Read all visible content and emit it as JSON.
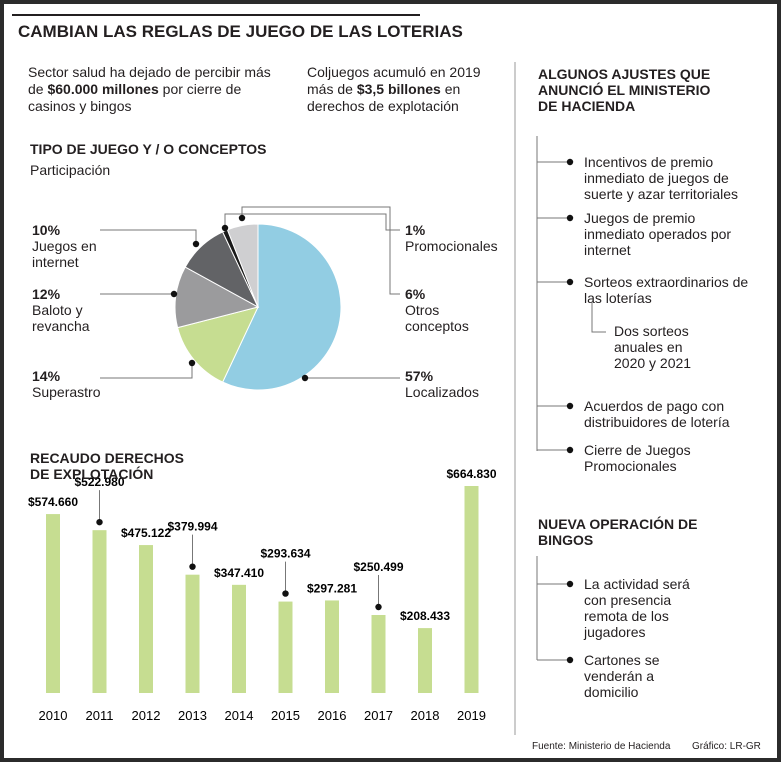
{
  "title": "CAMBIAN LAS REGLAS DE JUEGO DE LAS LOTERIAS",
  "intro": [
    {
      "before": "Sector salud ha dejado de percibir más de ",
      "bold": "$60.000 millones",
      "after": " por cierre de casinos y bingos"
    },
    {
      "before": "Coljuegos acumuló en 2019 más de ",
      "bold": "$3,5 billones",
      "after": " en derechos de explotación"
    }
  ],
  "chart_data": [
    {
      "type": "pie",
      "title": "TIPO DE JUEGO Y / O CONCEPTOS",
      "subtitle": "Participación",
      "categories": [
        "Localizados",
        "Superastro",
        "Baloto y revancha",
        "Juegos en internet",
        "Promocionales",
        "Otros conceptos"
      ],
      "values": [
        57,
        14,
        12,
        10,
        1,
        6
      ],
      "value_labels": [
        "57%",
        "14%",
        "12%",
        "10%",
        "1%",
        "6%"
      ],
      "colors": [
        "#92cde3",
        "#c6dd91",
        "#9b9b9d",
        "#626366",
        "#1a1a1a",
        "#cfcfd1"
      ]
    },
    {
      "type": "bar",
      "title": "RECAUDO DERECHOS DE EXPLOTACIÓN",
      "categories": [
        "2010",
        "2011",
        "2012",
        "2013",
        "2014",
        "2015",
        "2016",
        "2017",
        "2018",
        "2019"
      ],
      "values": [
        574660,
        522980,
        475122,
        379994,
        347410,
        293634,
        297281,
        250499,
        208433,
        664830
      ],
      "value_labels": [
        "$574.660",
        "$522.980",
        "$475.122",
        "$379.994",
        "$347.410",
        "$293.634",
        "$297.281",
        "$250.499",
        "$208.433",
        "$664.830"
      ],
      "color": "#c6dd91"
    }
  ],
  "sidebar": [
    {
      "heading": "ALGUNOS AJUSTES QUE ANUNCIÓ EL MINISTERIO DE HACIENDA",
      "items": [
        "Incentivos de premio inmediato de juegos de suerte y azar territoriales",
        "Juegos de premio inmediato operados por internet",
        "Sorteos extraordinarios de las loterías",
        "Acuerdos de pago con distribuidores de lotería",
        "Cierre de Juegos Promocionales"
      ],
      "subitem": "Dos sorteos anuales en 2020 y 2021"
    },
    {
      "heading": "NUEVA OPERACIÓN DE BINGOS",
      "items": [
        "La actividad será con presencia remota de los jugadores",
        "Cartones se venderán a domicilio"
      ]
    }
  ],
  "source": "Fuente: Ministerio de Hacienda",
  "credit": "Gráfico: LR-GR"
}
